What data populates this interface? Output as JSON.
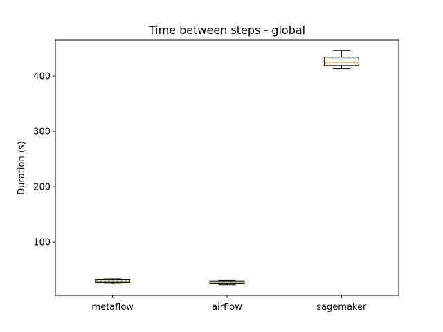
{
  "chart_data": {
    "type": "box",
    "title": "Time between steps - global",
    "xlabel": "",
    "ylabel": "Duration (s)",
    "categories": [
      "metaflow",
      "airflow",
      "sagemaker"
    ],
    "yticks": [
      100,
      200,
      300,
      400
    ],
    "ylim": [
      4,
      465
    ],
    "grid": false,
    "series": [
      {
        "category": "metaflow",
        "whisker_low": 25,
        "q1": 27,
        "median": 29,
        "mean": 30,
        "q3": 32,
        "whisker_high": 34
      },
      {
        "category": "airflow",
        "whisker_low": 23,
        "q1": 26,
        "median": 28,
        "mean": 28,
        "q3": 30,
        "whisker_high": 31
      },
      {
        "category": "sagemaker",
        "whisker_low": 413,
        "q1": 419,
        "median": 425,
        "mean": 431,
        "q3": 434,
        "whisker_high": 446
      }
    ],
    "colors": {
      "box": "#000000",
      "median": "#ff7f0e",
      "mean": "#2ca02c"
    }
  }
}
